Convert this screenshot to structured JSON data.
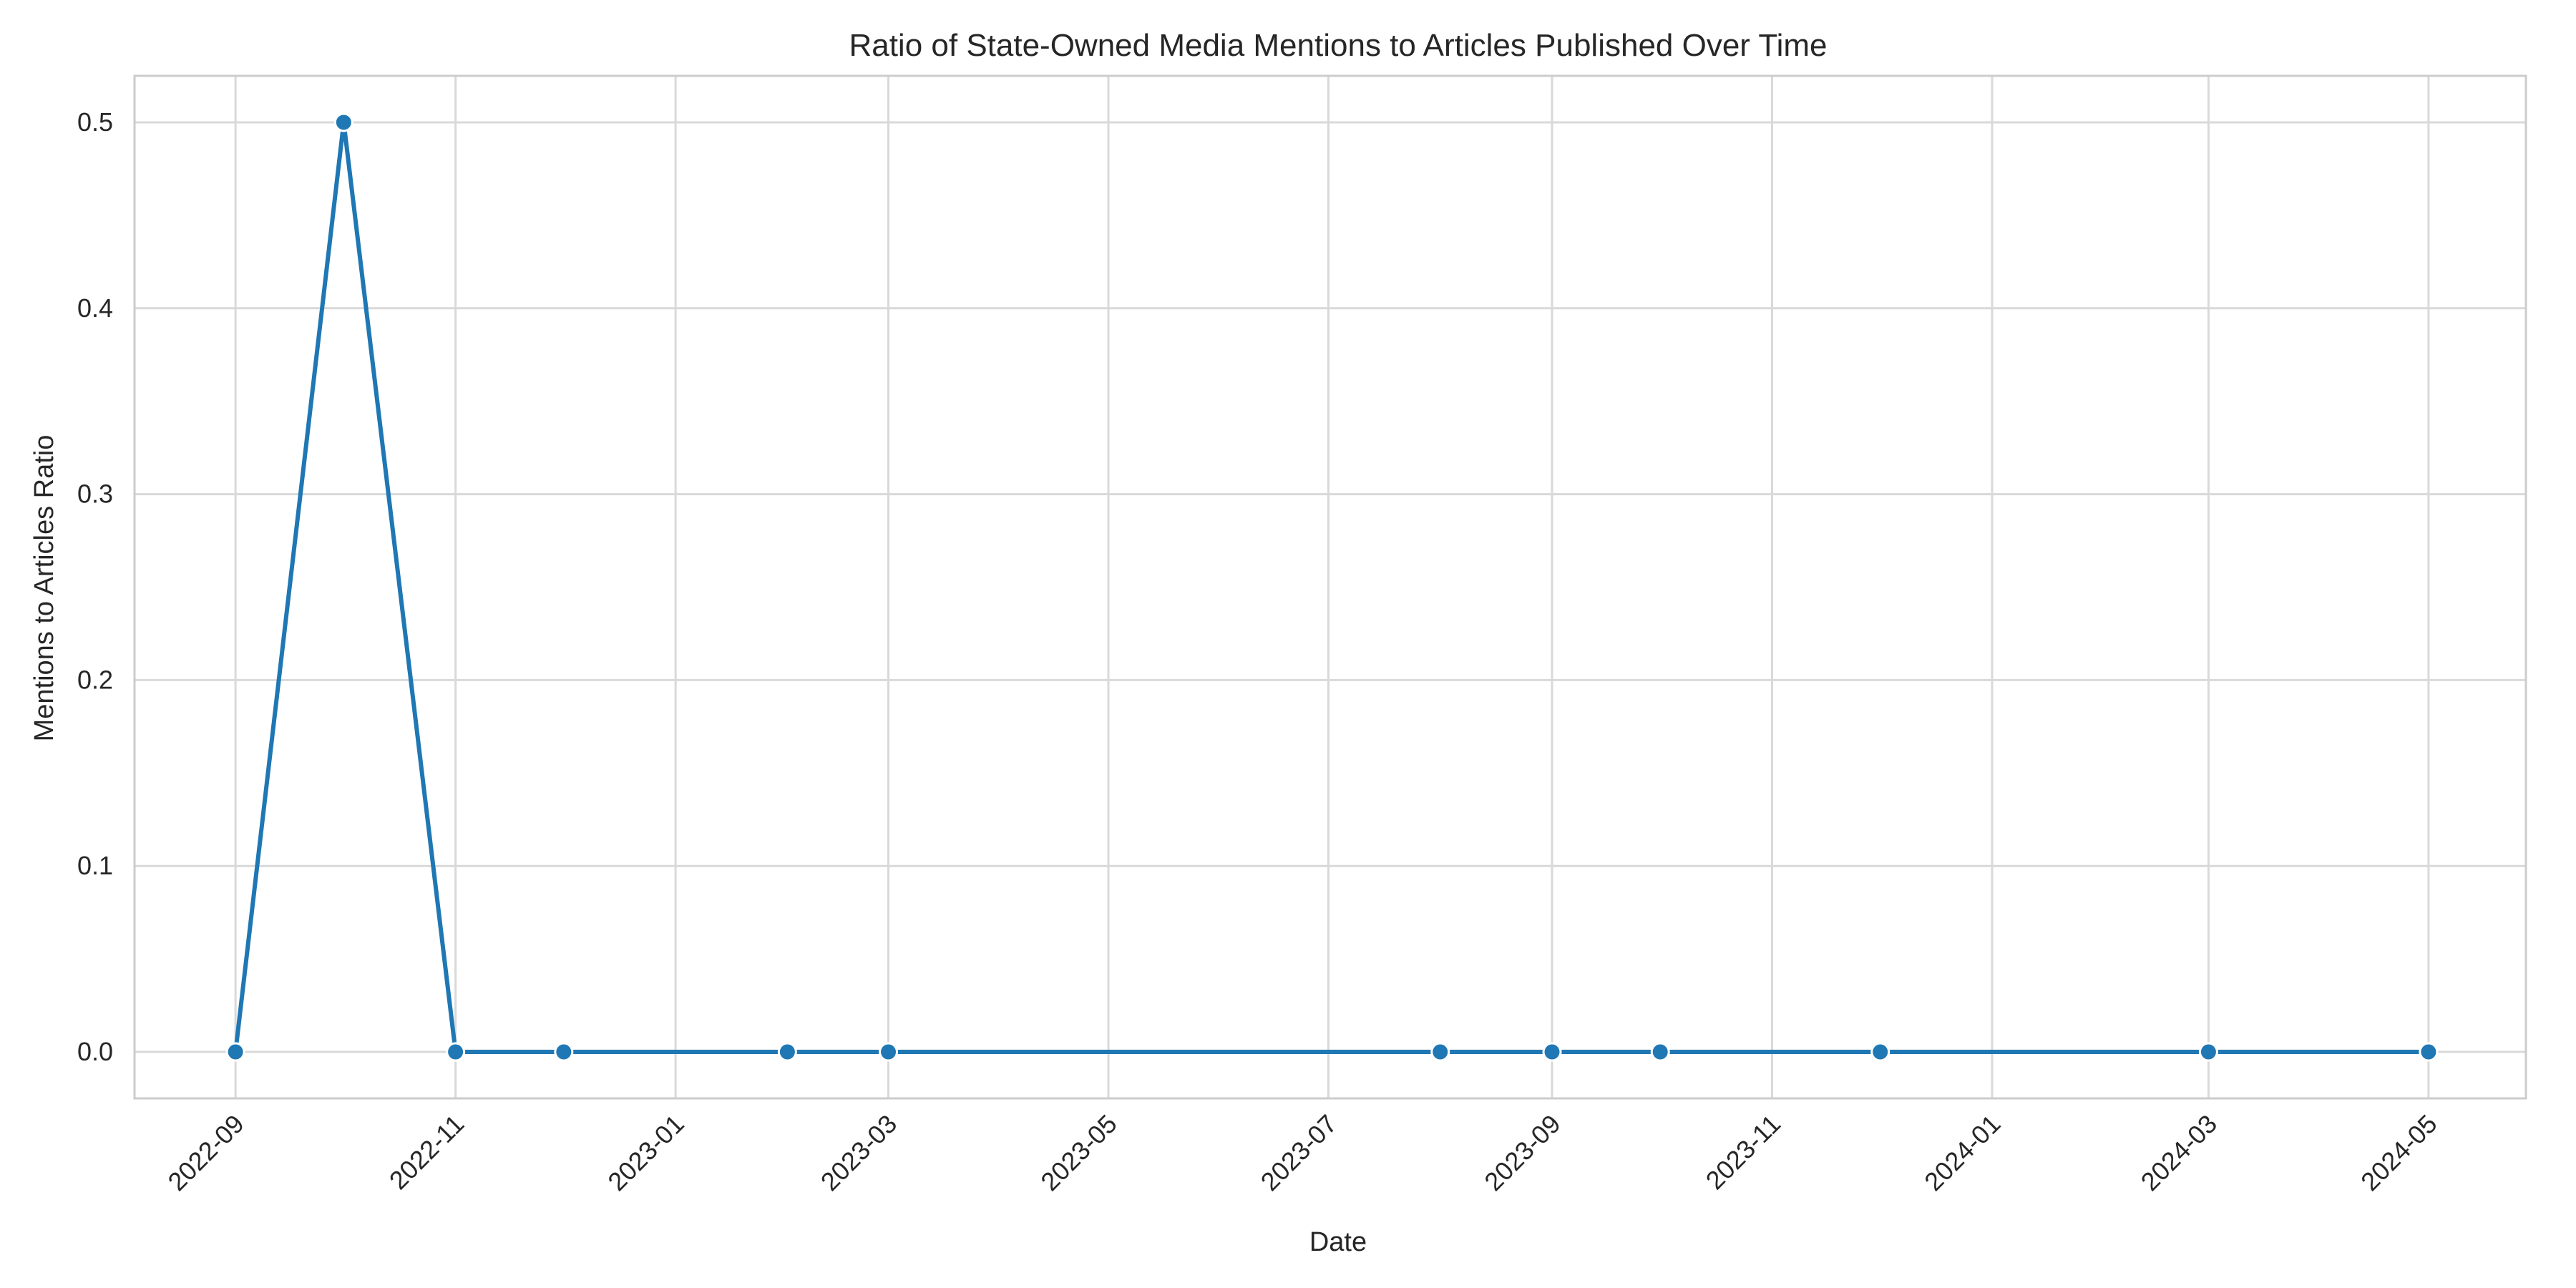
{
  "chart_data": {
    "type": "line",
    "title": "Ratio of State-Owned Media Mentions to Articles Published Over Time",
    "xlabel": "Date",
    "ylabel": "Mentions to Articles Ratio",
    "x_ticks": [
      "2022-09",
      "2022-11",
      "2023-01",
      "2023-03",
      "2023-05",
      "2023-07",
      "2023-09",
      "2023-11",
      "2024-01",
      "2024-03",
      "2024-05"
    ],
    "y_ticks": [
      "0.0",
      "0.1",
      "0.2",
      "0.3",
      "0.4",
      "0.5"
    ],
    "xlim": [
      "2022-08-04",
      "2024-05-28"
    ],
    "ylim": [
      -0.025,
      0.525
    ],
    "grid": true,
    "legend": "none",
    "series": [
      {
        "x": [
          "2022-09-01",
          "2022-10-01",
          "2022-11-01",
          "2022-12-01",
          "2023-02-01",
          "2023-03-01",
          "2023-08-01",
          "2023-09-01",
          "2023-10-01",
          "2023-12-01",
          "2024-03-01",
          "2024-05-01"
        ],
        "values": [
          0.0,
          0.5,
          0.0,
          0.0,
          0.0,
          0.0,
          0.0,
          0.0,
          0.0,
          0.0,
          0.0,
          0.0
        ],
        "color": "#1f77b4"
      }
    ]
  }
}
